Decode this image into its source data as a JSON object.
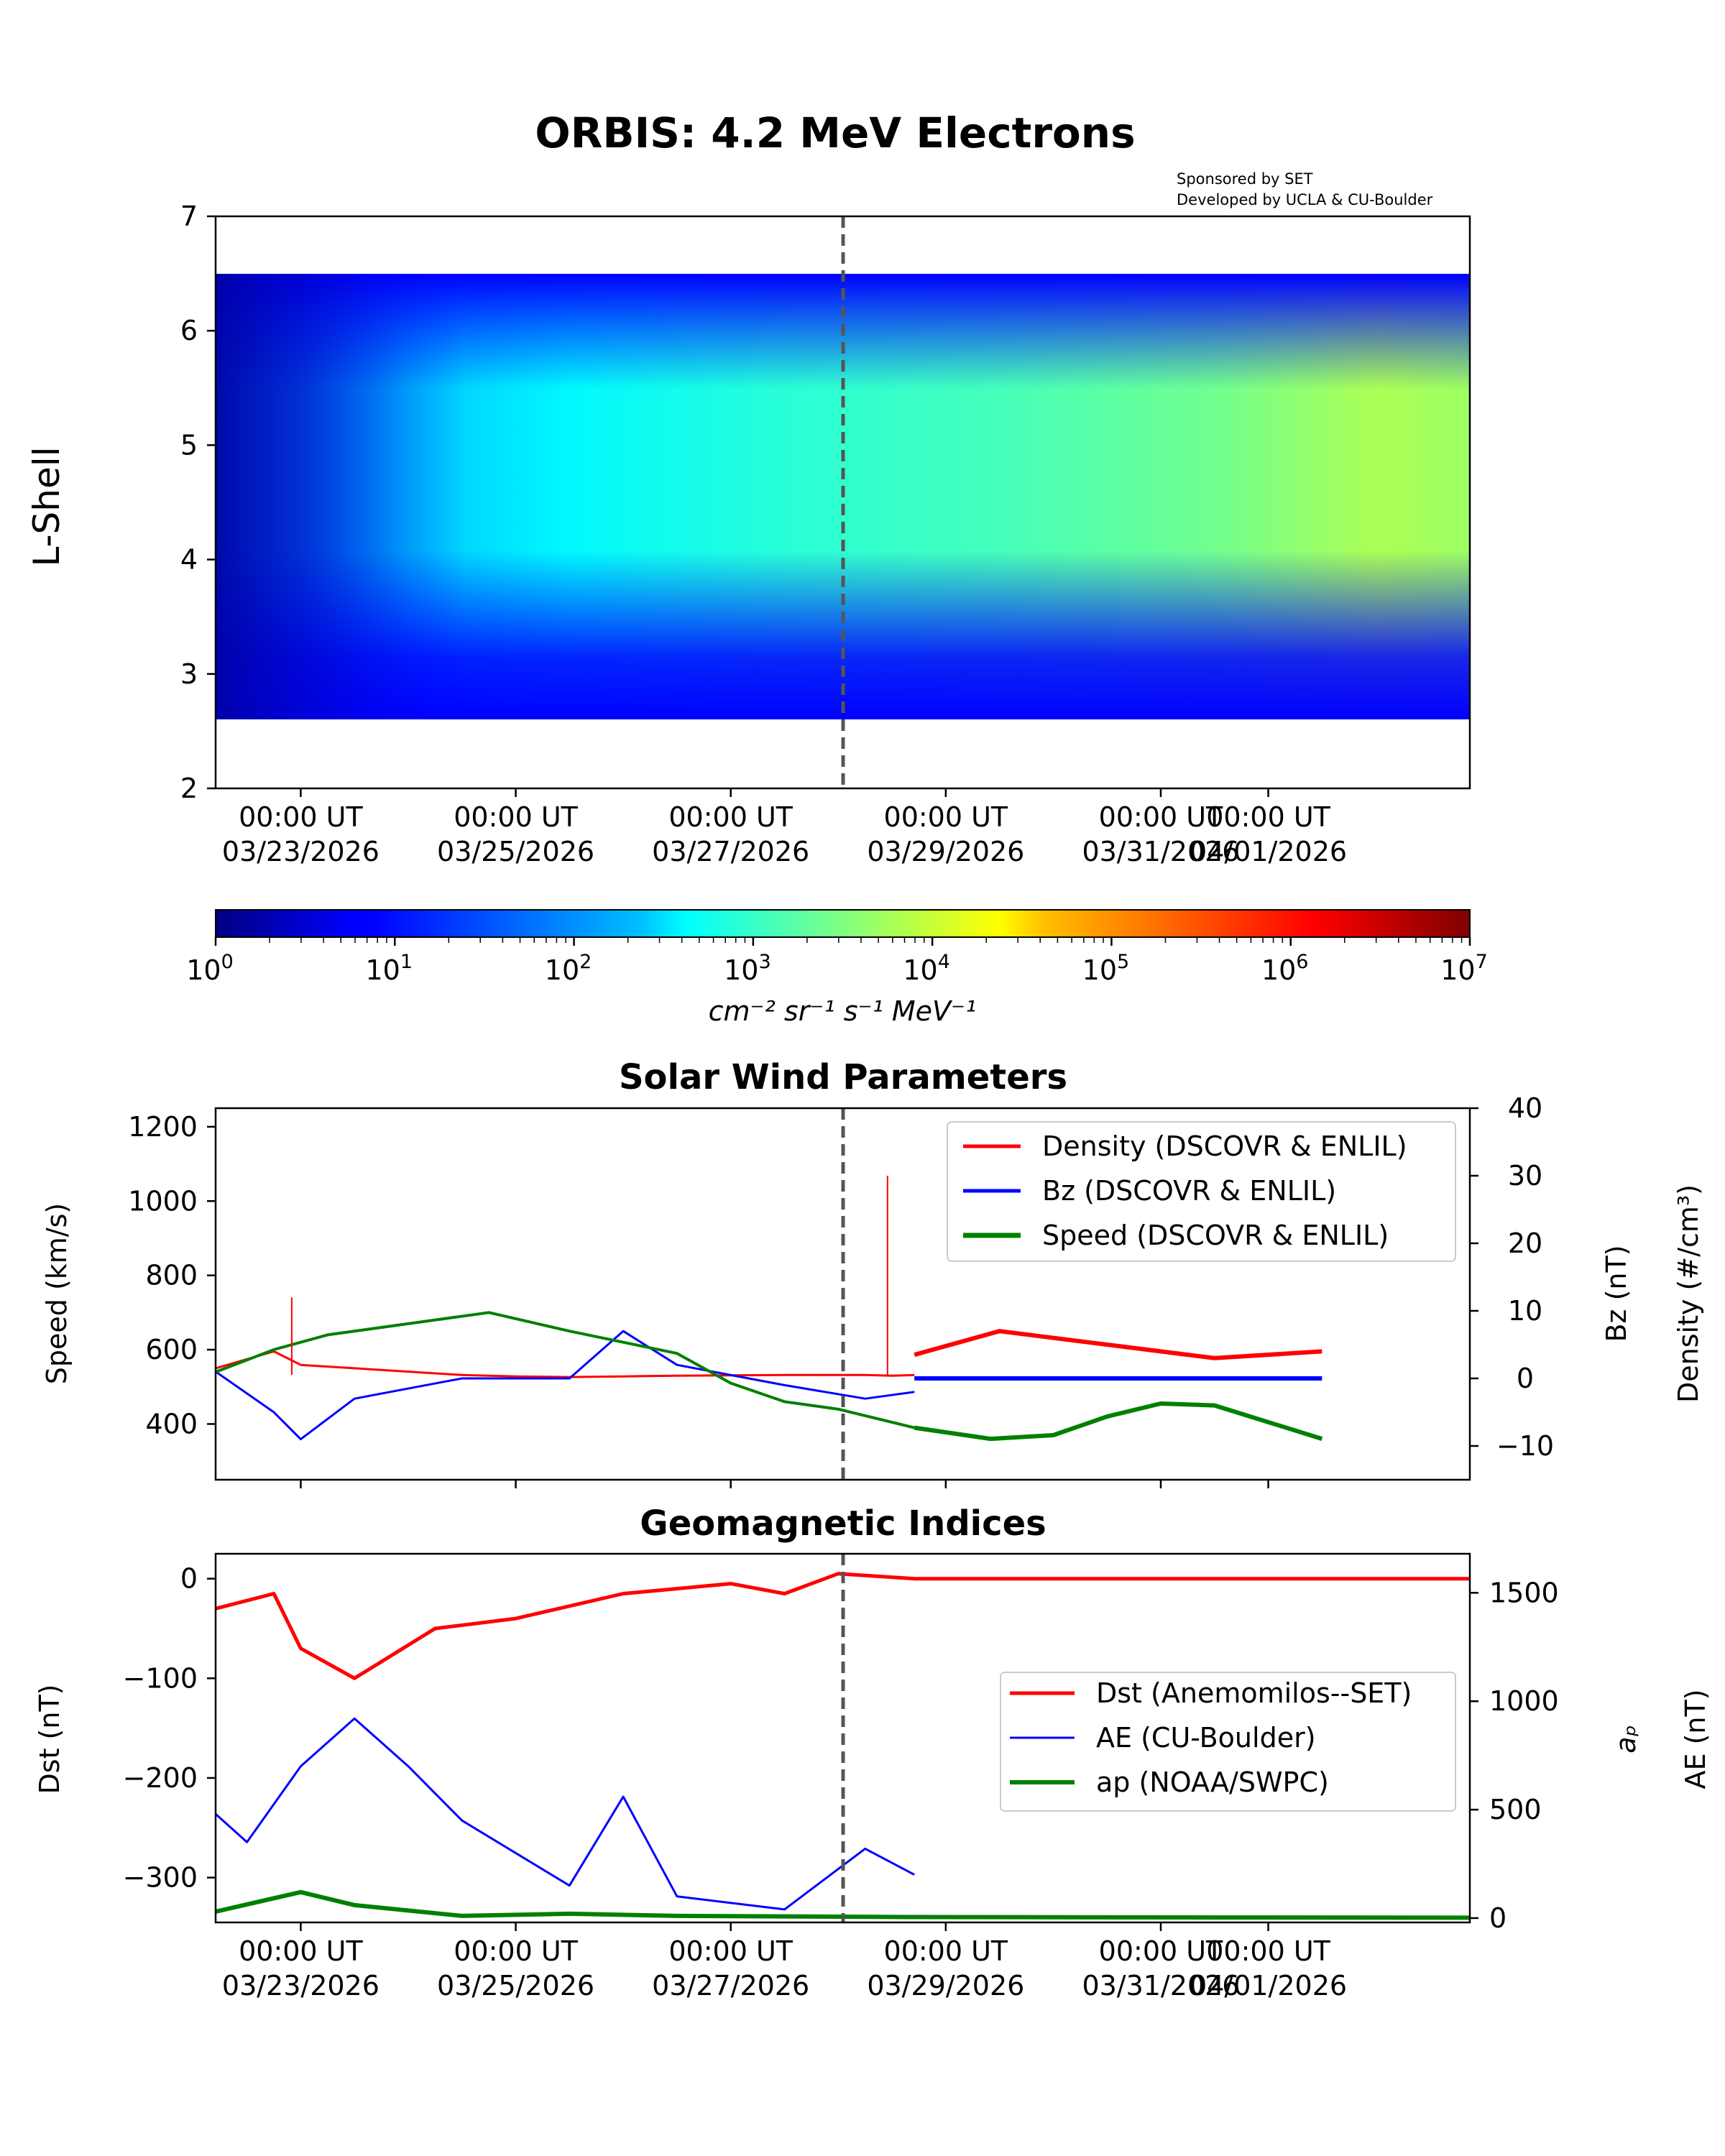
{
  "figure": {
    "title": "ORBIS: 4.2 MeV Electrons",
    "credits": [
      "Sponsored by SET",
      "Developed by UCLA & CU-Boulder"
    ]
  },
  "time_ticks": [
    {
      "day": -0.5,
      "time": "00:00 UT",
      "date": "03/23/2026"
    },
    {
      "day": 1.5,
      "time": "00:00 UT",
      "date": "03/25/2026"
    },
    {
      "day": 3.5,
      "time": "00:00 UT",
      "date": "03/27/2026"
    },
    {
      "day": 5.5,
      "time": "00:00 UT",
      "date": "03/29/2026"
    },
    {
      "day": 7.5,
      "time": "00:00 UT",
      "date": "03/31/2026"
    },
    {
      "day": 8.5,
      "time": "00:00 UT",
      "date": "04/01/2026"
    }
  ],
  "chart_data": [
    {
      "type": "heatmap",
      "title": "ORBIS: 4.2 MeV Electrons",
      "ylabel": "L-Shell",
      "ylim": [
        2,
        7
      ],
      "yticks": [
        2,
        3,
        4,
        5,
        6,
        7
      ],
      "x_range": [
        "03/21/2026 17:00 UT",
        "04/02/2026 09:00 UT"
      ],
      "nowcast_line": "03/28/2026 05:00 UT",
      "l_range": [
        2.6,
        6.5
      ],
      "colorbar": {
        "label": "cm⁻² sr⁻¹ s⁻¹ MeV⁻¹",
        "scale": "log",
        "range": [
          1,
          10000000
        ],
        "ticks": [
          {
            "value": 1,
            "base": "10",
            "exp": "0"
          },
          {
            "value": 10,
            "base": "10",
            "exp": "1"
          },
          {
            "value": 100,
            "base": "10",
            "exp": "2"
          },
          {
            "value": 1000,
            "base": "10",
            "exp": "3"
          },
          {
            "value": 10000,
            "base": "10",
            "exp": "4"
          },
          {
            "value": 100000,
            "base": "10",
            "exp": "5"
          },
          {
            "value": 1000000,
            "base": "10",
            "exp": "6"
          },
          {
            "value": 10000000,
            "base": "10",
            "exp": "7"
          }
        ],
        "colormap": "jet"
      },
      "flux_peak_log10": [
        {
          "date": "03/21/2026 17:00 UT",
          "value": 1.6
        },
        {
          "date": "03/22/2026 12:00 UT",
          "value": 1.8
        },
        {
          "date": "03/23/2026 12:00 UT",
          "value": 2.4
        },
        {
          "date": "03/25/2026 00:00 UT",
          "value": 2.6
        },
        {
          "date": "03/27/2026 00:00 UT",
          "value": 2.9
        },
        {
          "date": "03/29/2026 00:00 UT",
          "value": 3.1
        },
        {
          "date": "03/31/2026 00:00 UT",
          "value": 3.4
        },
        {
          "date": "04/01/2026 12:00 UT",
          "value": 3.8
        },
        {
          "date": "04/02/2026 09:00 UT",
          "value": 3.7
        }
      ]
    },
    {
      "type": "line",
      "title": "Solar Wind Parameters",
      "ylabel": "Speed (km/s)",
      "ylim": [
        250,
        1250
      ],
      "yticks": [
        400,
        600,
        800,
        1000,
        1200
      ],
      "y2label_bz": "Bz (nT)",
      "y2label_density": "Density (#/cm³)",
      "y2lim": [
        -15,
        40
      ],
      "y2ticks": [
        -10,
        0,
        10,
        20,
        30,
        40
      ],
      "legend_position": "top-right",
      "series": [
        {
          "name": "Density (DSCOVR & ENLIL)",
          "color": "#ff0000",
          "axis": "right",
          "x": [
            "03/21/2026 17:00 UT",
            "03/22/2026 06:00 UT",
            "03/22/2026 12:00 UT",
            "03/23/2026 00:00 UT",
            "03/24/2026 00:00 UT",
            "03/24/2026 12:00 UT",
            "03/25/2026 00:00 UT",
            "03/25/2026 12:00 UT",
            "03/26/2026 00:00 UT",
            "03/27/2026 00:00 UT",
            "03/27/2026 18:00 UT",
            "03/28/2026 00:00 UT",
            "03/28/2026 05:00 UT"
          ],
          "y": [
            1.5,
            4,
            2,
            1.5,
            0.5,
            0.3,
            0.2,
            0.3,
            0.4,
            0.5,
            0.5,
            0.4,
            0.5
          ]
        },
        {
          "name": "Bz (DSCOVR & ENLIL)",
          "color": "#0000ff",
          "axis": "right",
          "x": [
            "03/21/2026 17:00 UT",
            "03/22/2026 06:00 UT",
            "03/22/2026 12:00 UT",
            "03/23/2026 00:00 UT",
            "03/24/2026 00:00 UT",
            "03/25/2026 00:00 UT",
            "03/25/2026 12:00 UT",
            "03/26/2026 00:00 UT",
            "03/27/2026 00:00 UT",
            "03/27/2026 18:00 UT",
            "03/28/2026 05:00 UT"
          ],
          "y": [
            1,
            -5,
            -9,
            -3,
            0,
            0,
            7,
            2,
            -1,
            -3,
            -2
          ]
        },
        {
          "name": "Speed (DSCOVR & ENLIL)",
          "color": "#008000",
          "axis": "left",
          "x": [
            "03/21/2026 17:00 UT",
            "03/22/2026 06:00 UT",
            "03/22/2026 18:00 UT",
            "03/23/2026 12:00 UT",
            "03/24/2026 06:00 UT",
            "03/25/2026 00:00 UT",
            "03/25/2026 12:00 UT",
            "03/26/2026 00:00 UT",
            "03/26/2026 12:00 UT",
            "03/27/2026 00:00 UT",
            "03/27/2026 12:00 UT",
            "03/28/2026 05:00 UT"
          ],
          "y": [
            540,
            600,
            640,
            670,
            700,
            650,
            620,
            590,
            510,
            460,
            440,
            390
          ]
        }
      ],
      "forecast": [
        {
          "name": "Density (ENLIL)",
          "color": "#ff0000",
          "axis": "right",
          "x": [
            "03/28/2026 05:00 UT",
            "03/29/2026 00:00 UT",
            "03/30/2026 00:00 UT",
            "03/31/2026 00:00 UT",
            "04/01/2026 00:00 UT"
          ],
          "y": [
            3.5,
            7,
            5,
            3,
            4
          ]
        },
        {
          "name": "Bz (ENLIL)",
          "color": "#0000ff",
          "axis": "right",
          "x": [
            "03/28/2026 05:00 UT",
            "03/30/2026 00:00 UT",
            "04/01/2026 00:00 UT"
          ],
          "y": [
            0,
            0,
            0
          ]
        },
        {
          "name": "Speed (ENLIL)",
          "color": "#008000",
          "axis": "left",
          "x": [
            "03/28/2026 05:00 UT",
            "03/28/2026 22:00 UT",
            "03/29/2026 12:00 UT",
            "03/30/2026 00:00 UT",
            "03/30/2026 12:00 UT",
            "03/31/2026 00:00 UT",
            "04/01/2026 00:00 UT"
          ],
          "y": [
            390,
            360,
            370,
            420,
            455,
            450,
            360
          ]
        }
      ],
      "spikes": [
        {
          "name": "Density (DSCOVR & ENLIL)",
          "date": "03/27/2026 23:00 UT",
          "value": 30
        },
        {
          "name": "Density (DSCOVR & ENLIL)",
          "date": "03/22/2026 10:00 UT",
          "value": 12
        }
      ]
    },
    {
      "type": "line",
      "title": "Geomagnetic Indices",
      "ylabel": "Dst (nT)",
      "ylim": [
        -345,
        25
      ],
      "yticks": [
        -300,
        -200,
        -100,
        0
      ],
      "y2label_ap": "aₚ",
      "y2label_ae": "AE (nT)",
      "y2lim": [
        -20,
        1680
      ],
      "y2ticks": [
        0,
        500,
        1000,
        1500
      ],
      "legend_position": "center-right",
      "series": [
        {
          "name": "Dst (Anemomilos--SET)",
          "color": "#ff0000",
          "axis": "left",
          "x": [
            "03/21/2026 17:00 UT",
            "03/22/2026 06:00 UT",
            "03/22/2026 12:00 UT",
            "03/23/2026 00:00 UT",
            "03/23/2026 18:00 UT",
            "03/24/2026 12:00 UT",
            "03/25/2026 12:00 UT",
            "03/26/2026 12:00 UT",
            "03/27/2026 00:00 UT",
            "03/27/2026 12:00 UT",
            "03/28/2026 05:00 UT",
            "04/02/2026 09:00 UT"
          ],
          "y": [
            -30,
            -15,
            -70,
            -100,
            -50,
            -40,
            -15,
            -5,
            -15,
            5,
            0,
            0
          ]
        },
        {
          "name": "AE (CU-Boulder)",
          "color": "#0000ff",
          "axis": "right",
          "x": [
            "03/21/2026 17:00 UT",
            "03/22/2026 00:00 UT",
            "03/22/2026 12:00 UT",
            "03/23/2026 00:00 UT",
            "03/23/2026 12:00 UT",
            "03/24/2026 00:00 UT",
            "03/25/2026 00:00 UT",
            "03/25/2026 12:00 UT",
            "03/26/2026 00:00 UT",
            "03/27/2026 00:00 UT",
            "03/27/2026 18:00 UT",
            "03/28/2026 05:00 UT"
          ],
          "y": [
            480,
            350,
            700,
            920,
            700,
            450,
            150,
            560,
            100,
            40,
            320,
            200
          ]
        },
        {
          "name": "ap (NOAA/SWPC)",
          "color": "#008000",
          "axis": "right",
          "x": [
            "03/21/2026 17:00 UT",
            "03/22/2026 12:00 UT",
            "03/23/2026 00:00 UT",
            "03/24/2026 00:00 UT",
            "03/25/2026 00:00 UT",
            "03/26/2026 00:00 UT",
            "03/28/2026 05:00 UT",
            "03/31/2026 00:00 UT",
            "04/02/2026 09:00 UT"
          ],
          "y": [
            30,
            120,
            60,
            10,
            20,
            10,
            5,
            3,
            2
          ]
        }
      ]
    }
  ]
}
